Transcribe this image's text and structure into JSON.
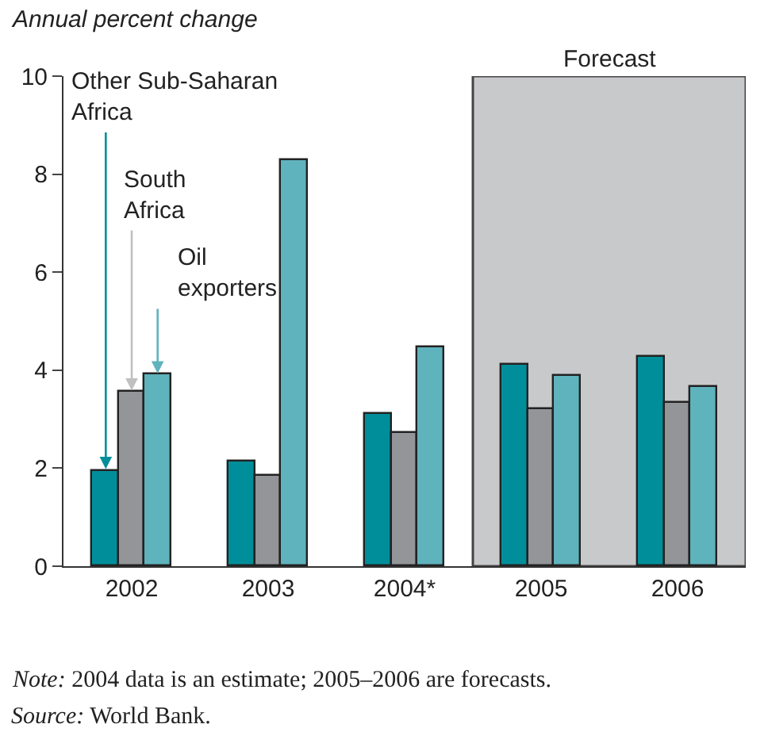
{
  "chart_data": {
    "type": "bar",
    "ylabel": "Annual percent change",
    "categories": [
      "2002",
      "2003",
      "2004*",
      "2005",
      "2006"
    ],
    "series": [
      {
        "name": "Other Sub-Saharan Africa",
        "color": "#008f9a",
        "values": [
          1.95,
          2.12,
          3.1,
          4.12,
          4.28
        ]
      },
      {
        "name": "South Africa",
        "color": "#939598",
        "values": [
          3.55,
          1.85,
          2.73,
          3.22,
          3.32
        ]
      },
      {
        "name": "Oil exporters",
        "color": "#5fb3bd",
        "values": [
          3.9,
          8.3,
          4.46,
          3.87,
          3.65
        ]
      }
    ],
    "ylim": [
      0,
      10
    ],
    "yticks": [
      0,
      2,
      4,
      6,
      8,
      10
    ],
    "grid": false,
    "legend": false,
    "bands": [
      {
        "axis": "x",
        "from": "2005",
        "to": "2006",
        "label": "Forecast",
        "color": "#c8c9cb"
      }
    ],
    "annotations": [
      "Note: 2004 data is an estimate; 2005–2006 are forecasts.",
      "Source: World Bank."
    ]
  }
}
